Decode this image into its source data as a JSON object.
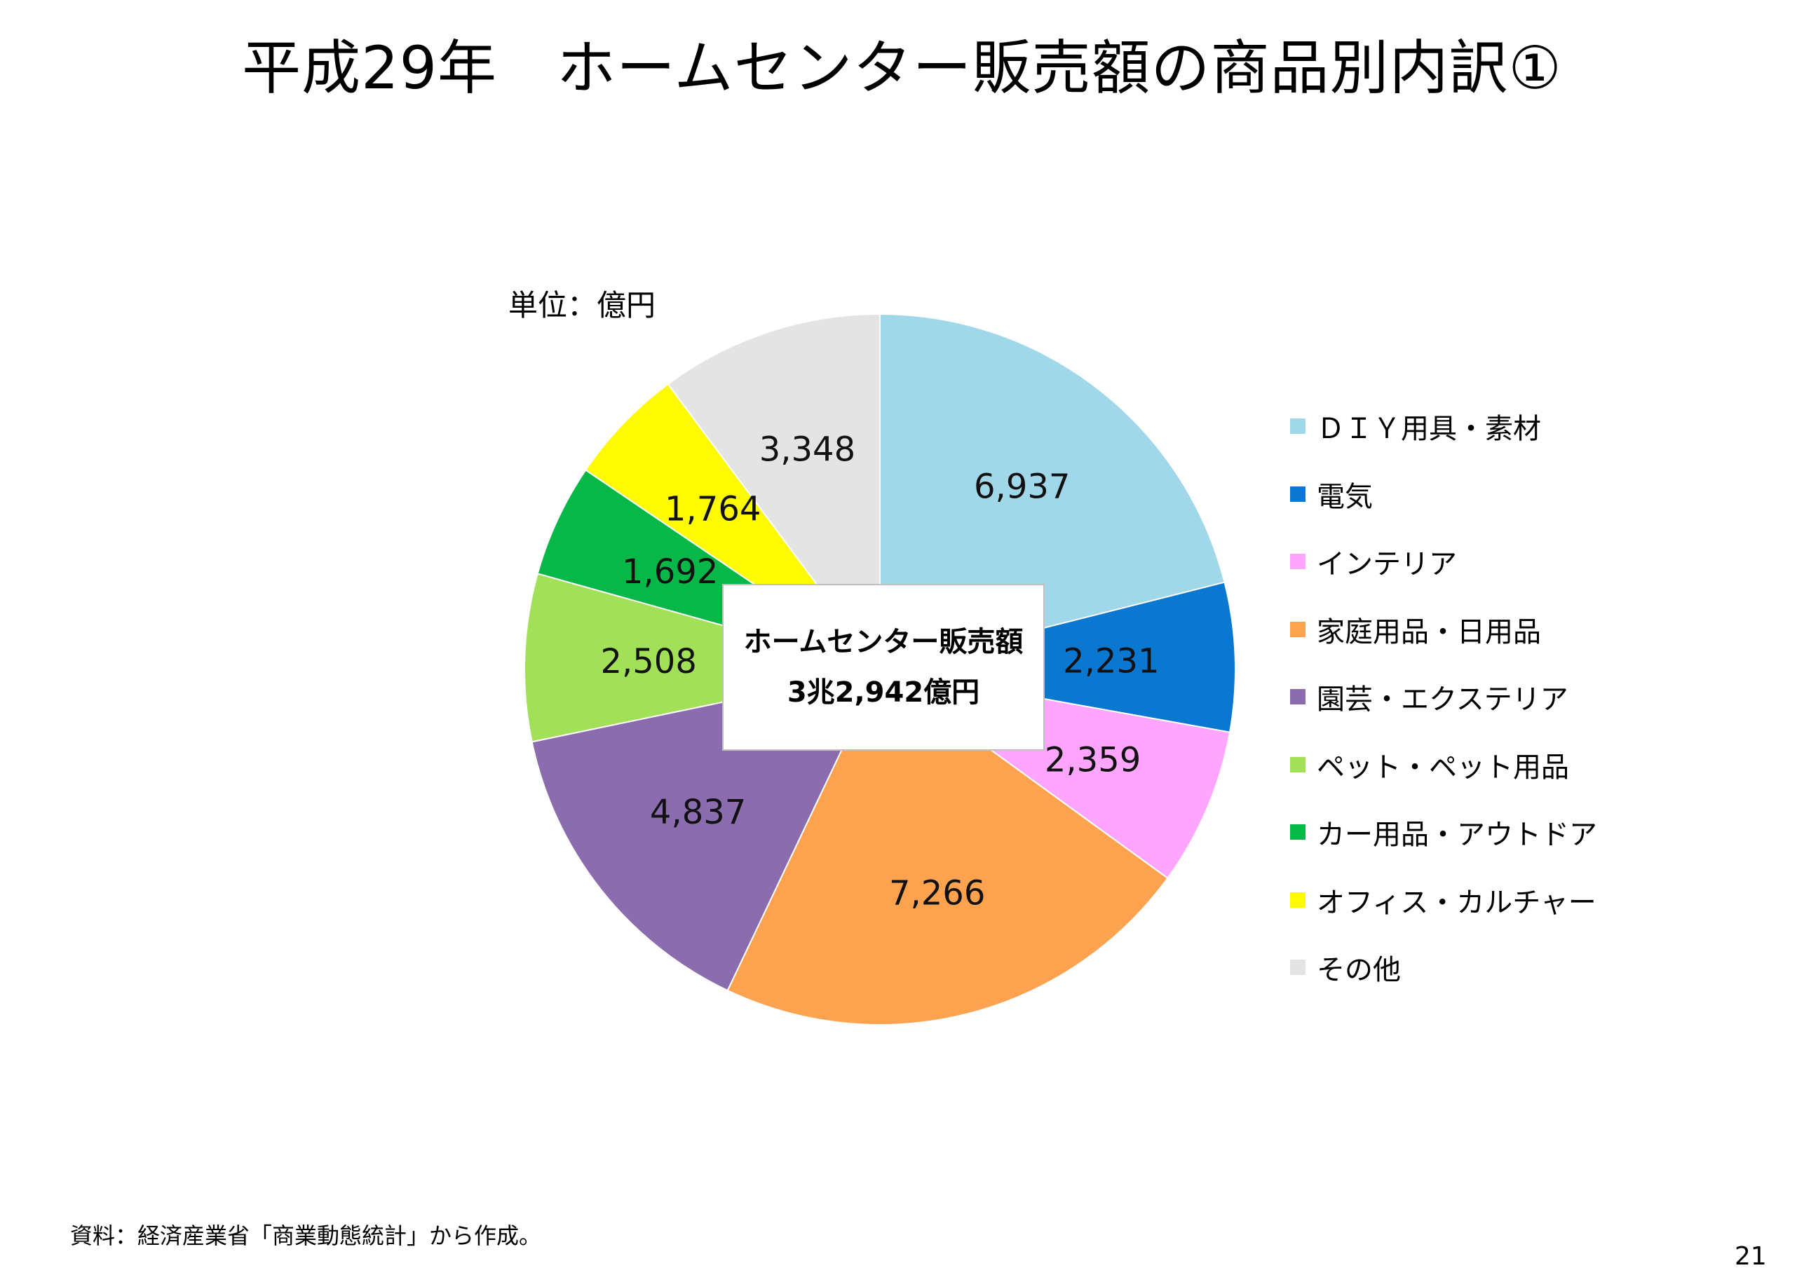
{
  "page": {
    "title": "平成29年　ホームセンター販売額の商品別内訳①",
    "unit_label": "単位：億円",
    "source_note": "資料：経済産業省「商業動態統計」から作成。",
    "page_number": "21"
  },
  "center_box": {
    "line1": "ホームセンター販売額",
    "line2": "3兆2,942億円"
  },
  "chart_data": {
    "type": "pie",
    "title": "平成29年　ホームセンター販売額の商品別内訳①",
    "unit": "億円",
    "legend_position": "right",
    "start": "12 o'clock, clockwise",
    "slices": [
      {
        "label": "ＤＩＹ用具・素材",
        "value": 6937,
        "display": "6,937",
        "color": "#a0d8ea"
      },
      {
        "label": "電気",
        "value": 2231,
        "display": "2,231",
        "color": "#0a77d0"
      },
      {
        "label": "インテリア",
        "value": 2359,
        "display": "2,359",
        "color": "#fea5fd"
      },
      {
        "label": "家庭用品・日用品",
        "value": 7266,
        "display": "7,266",
        "color": "#fda24f"
      },
      {
        "label": "園芸・エクステリア",
        "value": 4837,
        "display": "4,837",
        "color": "#8a6caf"
      },
      {
        "label": "ペット・ペット用品",
        "value": 2508,
        "display": "2,508",
        "color": "#a2e058"
      },
      {
        "label": "カー用品・アウトドア",
        "value": 1692,
        "display": "1,692",
        "color": "#07b849"
      },
      {
        "label": "オフィス・カルチャー",
        "value": 1764,
        "display": "1,764",
        "color": "#fdfa02"
      },
      {
        "label": "その他",
        "value": 3348,
        "display": "3,348",
        "color": "#e4e4e4"
      }
    ]
  }
}
